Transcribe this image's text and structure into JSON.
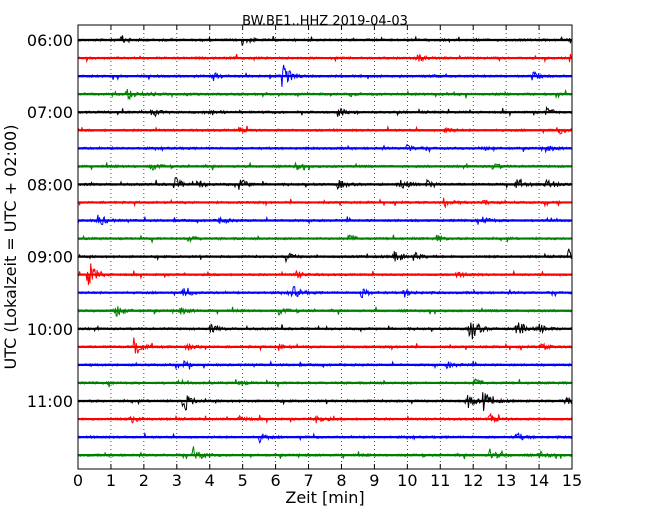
{
  "chart_data": {
    "type": "line",
    "title": "BW.BE1..HHZ 2019-04-03",
    "xlabel": "Zeit  [min]",
    "ylabel": "UTC (Lokalzeit = UTC + 02:00)",
    "xlim": [
      0,
      15
    ],
    "x_ticks": [
      "0",
      "1",
      "2",
      "3",
      "4",
      "5",
      "6",
      "7",
      "8",
      "9",
      "10",
      "11",
      "12",
      "13",
      "14",
      "15"
    ],
    "y_ticks": [
      "06:00",
      "07:00",
      "08:00",
      "09:00",
      "10:00",
      "11:00"
    ],
    "grid_x": true,
    "colors": [
      "#000000",
      "#ff0000",
      "#0000ff",
      "#008000"
    ],
    "series": [
      {
        "color": "#000000",
        "events": [
          [
            1.3,
            0.35
          ],
          [
            5.0,
            0.35
          ]
        ]
      },
      {
        "color": "#ff0000",
        "events": [
          [
            10.3,
            0.3
          ],
          [
            14.9,
            0.3
          ]
        ]
      },
      {
        "color": "#0000ff",
        "events": [
          [
            6.2,
            1.0
          ],
          [
            4.1,
            0.3
          ],
          [
            13.8,
            0.3
          ]
        ]
      },
      {
        "color": "#008000",
        "events": [
          [
            1.5,
            0.3
          ],
          [
            2.0,
            0.25
          ],
          [
            8.2,
            0.2
          ]
        ]
      },
      {
        "color": "#000000",
        "events": [
          [
            2.2,
            0.3
          ],
          [
            4.0,
            0.3
          ],
          [
            7.9,
            0.4
          ],
          [
            14.2,
            0.35
          ]
        ]
      },
      {
        "color": "#ff0000",
        "events": [
          [
            4.9,
            0.25
          ],
          [
            11.1,
            0.3
          ],
          [
            14.6,
            0.25
          ]
        ]
      },
      {
        "color": "#0000ff",
        "events": [
          [
            10.0,
            0.25
          ],
          [
            12.2,
            0.25
          ],
          [
            14.2,
            0.25
          ]
        ]
      },
      {
        "color": "#008000",
        "events": [
          [
            2.2,
            0.3
          ],
          [
            6.6,
            0.25
          ],
          [
            12.6,
            0.25
          ]
        ]
      },
      {
        "color": "#000000",
        "events": [
          [
            2.9,
            0.6
          ],
          [
            3.6,
            0.35
          ],
          [
            4.9,
            0.5
          ],
          [
            7.9,
            0.35
          ],
          [
            9.8,
            0.45
          ],
          [
            10.6,
            0.3
          ],
          [
            13.3,
            0.35
          ],
          [
            14.2,
            0.55
          ]
        ]
      },
      {
        "color": "#ff0000",
        "events": [
          [
            11.1,
            0.35
          ],
          [
            12.3,
            0.25
          ]
        ]
      },
      {
        "color": "#0000ff",
        "events": [
          [
            0.6,
            0.5
          ],
          [
            4.3,
            0.25
          ],
          [
            12.3,
            0.25
          ]
        ]
      },
      {
        "color": "#008000",
        "events": [
          [
            3.3,
            0.25
          ],
          [
            8.2,
            0.25
          ],
          [
            10.9,
            0.25
          ]
        ]
      },
      {
        "color": "#000000",
        "events": [
          [
            6.3,
            0.35
          ],
          [
            9.6,
            0.6
          ],
          [
            10.2,
            0.3
          ],
          [
            14.9,
            0.5
          ]
        ]
      },
      {
        "color": "#ff0000",
        "events": [
          [
            0.3,
            1.2
          ],
          [
            6.6,
            0.3
          ],
          [
            11.5,
            0.25
          ]
        ]
      },
      {
        "color": "#0000ff",
        "events": [
          [
            3.2,
            0.35
          ],
          [
            6.5,
            0.55
          ],
          [
            8.6,
            0.35
          ],
          [
            9.9,
            0.3
          ]
        ]
      },
      {
        "color": "#008000",
        "events": [
          [
            1.1,
            0.6
          ],
          [
            3.1,
            0.25
          ],
          [
            6.1,
            0.25
          ]
        ]
      },
      {
        "color": "#000000",
        "events": [
          [
            4.0,
            0.3
          ],
          [
            11.9,
            1.1
          ],
          [
            13.3,
            0.8
          ],
          [
            14.0,
            0.35
          ]
        ]
      },
      {
        "color": "#ff0000",
        "events": [
          [
            1.7,
            0.7
          ],
          [
            3.3,
            0.3
          ],
          [
            6.1,
            0.25
          ],
          [
            14.0,
            0.3
          ]
        ]
      },
      {
        "color": "#0000ff",
        "events": [
          [
            3.2,
            0.25
          ],
          [
            11.2,
            0.25
          ]
        ]
      },
      {
        "color": "#008000",
        "events": [
          [
            4.8,
            0.25
          ],
          [
            12.0,
            0.35
          ]
        ]
      },
      {
        "color": "#000000",
        "events": [
          [
            3.2,
            0.9
          ],
          [
            11.8,
            0.6
          ],
          [
            12.3,
            0.7
          ],
          [
            14.8,
            0.3
          ]
        ]
      },
      {
        "color": "#ff0000",
        "events": [
          [
            1.6,
            0.3
          ],
          [
            4.9,
            0.3
          ],
          [
            7.2,
            0.45
          ],
          [
            12.5,
            0.45
          ]
        ]
      },
      {
        "color": "#0000ff",
        "events": [
          [
            5.5,
            0.35
          ],
          [
            13.3,
            0.35
          ]
        ]
      },
      {
        "color": "#008000",
        "events": [
          [
            3.5,
            0.6
          ],
          [
            12.5,
            0.45
          ],
          [
            14.0,
            0.3
          ]
        ]
      }
    ]
  }
}
